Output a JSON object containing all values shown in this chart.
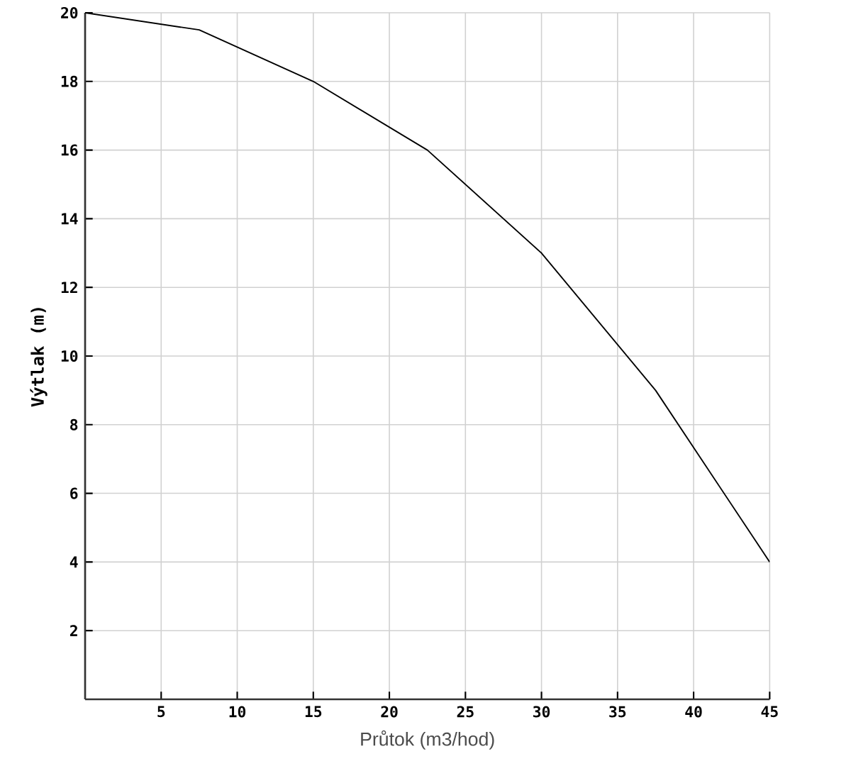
{
  "chart_data": {
    "type": "line",
    "xlabel": "Průtok (m3/hod)",
    "ylabel": "Výtlak (m)",
    "x": [
      0,
      7.5,
      15,
      22.5,
      30,
      37.5,
      45
    ],
    "series": [
      {
        "color": "#000000",
        "values": [
          20,
          19.5,
          18,
          16,
          13,
          9,
          4
        ]
      }
    ],
    "xlim": [
      0,
      45
    ],
    "ylim": [
      0,
      20
    ],
    "xticks": [
      5,
      10,
      15,
      20,
      25,
      30,
      35,
      40,
      45
    ],
    "yticks": [
      2,
      4,
      6,
      8,
      10,
      12,
      14,
      16,
      18,
      20
    ],
    "grid": true,
    "marker": "none",
    "line_style": "solid"
  }
}
